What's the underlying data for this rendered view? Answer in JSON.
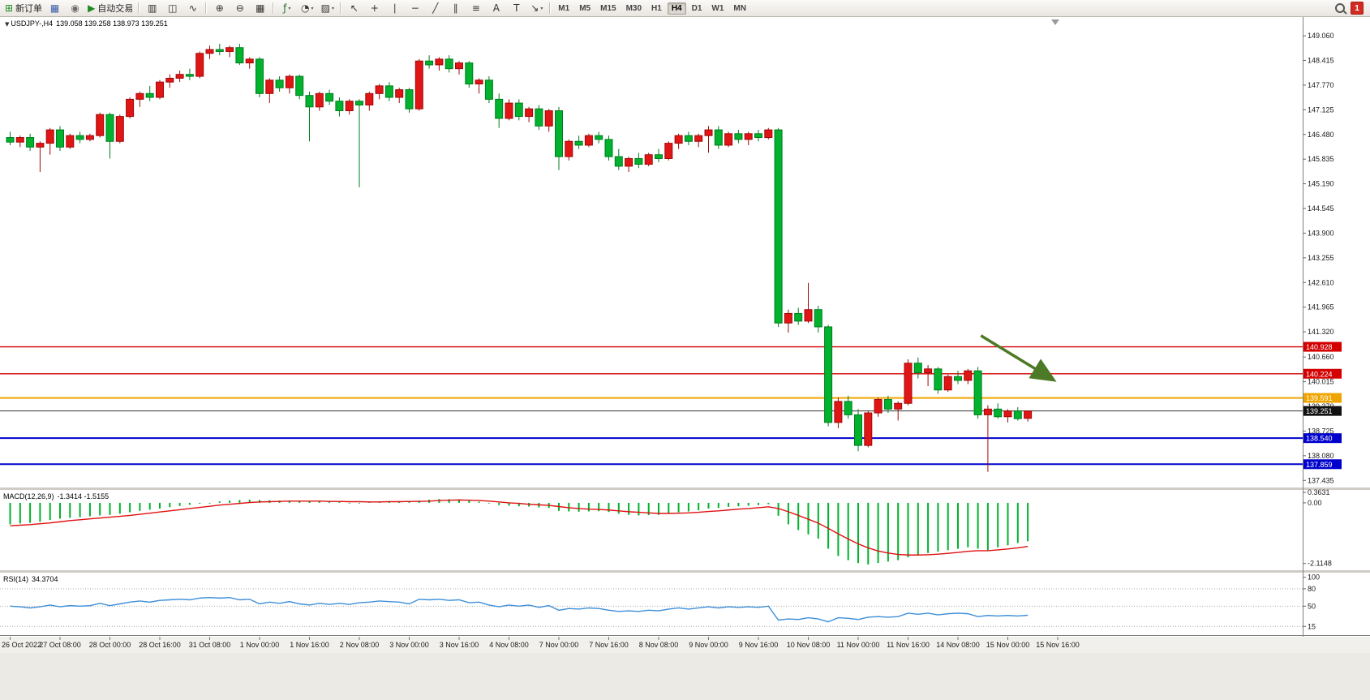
{
  "icons": {
    "dropdown": "▼",
    "tiny_dropdown": "▾"
  },
  "toolbar": {
    "groups": [
      {
        "name": "trade-group",
        "items": [
          {
            "name": "new-order-button",
            "glyph": "⊞",
            "color": "#1f8a1f",
            "label": "新订单"
          },
          {
            "name": "chart-list-button",
            "glyph": "▦",
            "color": "#3b5ea8"
          },
          {
            "name": "alerts-button",
            "glyph": "◉",
            "color": "#6b6b6b"
          },
          {
            "name": "autotrading-button",
            "glyph": "▶",
            "color": "#1f8a1f",
            "label": "自动交易"
          }
        ]
      },
      {
        "name": "chart-type-group",
        "items": [
          {
            "name": "bar-chart-button",
            "glyph": "▥",
            "color": "#333333"
          },
          {
            "name": "candlestick-chart-button",
            "glyph": "◫",
            "color": "#333333"
          },
          {
            "name": "line-chart-button",
            "glyph": "∿",
            "color": "#333333"
          }
        ]
      },
      {
        "name": "zoom-group",
        "items": [
          {
            "name": "zoom-in-button",
            "glyph": "⊕",
            "color": "#333333"
          },
          {
            "name": "zoom-out-button",
            "glyph": "⊖",
            "color": "#333333"
          },
          {
            "name": "tile-windows-button",
            "glyph": "▦",
            "color": "#333333"
          }
        ]
      },
      {
        "name": "objects-group",
        "items": [
          {
            "name": "indicators-button",
            "glyph": "ƒ",
            "color": "#1f6f1f",
            "dropdown": true
          },
          {
            "name": "periods-button",
            "glyph": "◔",
            "color": "#333333",
            "dropdown": true
          },
          {
            "name": "templates-button",
            "glyph": "▨",
            "color": "#333333",
            "dropdown": true
          }
        ]
      },
      {
        "name": "drawing-group",
        "items": [
          {
            "name": "cursor-button",
            "glyph": "↖",
            "color": "#333333"
          },
          {
            "name": "crosshair-button",
            "glyph": "+",
            "color": "#333333"
          },
          {
            "name": "vertical-line-button",
            "glyph": "∣",
            "color": "#333333"
          },
          {
            "name": "horizontal-line-button",
            "glyph": "−",
            "color": "#333333"
          },
          {
            "name": "trendline-button",
            "glyph": "╱",
            "color": "#333333"
          },
          {
            "name": "channel-button",
            "glyph": "∥",
            "color": "#333333"
          },
          {
            "name": "fibonacci-button",
            "glyph": "≡",
            "color": "#333333"
          },
          {
            "name": "text-button",
            "glyph": "A",
            "color": "#333333"
          },
          {
            "name": "label-button",
            "glyph": "T",
            "color": "#333333"
          },
          {
            "name": "arrows-button",
            "glyph": "↘",
            "color": "#333333",
            "dropdown": true
          }
        ]
      }
    ],
    "timeframes": {
      "items": [
        "M1",
        "M5",
        "M15",
        "M30",
        "H1",
        "H4",
        "D1",
        "W1",
        "MN"
      ],
      "active": "H4"
    },
    "notification_count": "1"
  },
  "chart": {
    "symbol_header": {
      "symbol": "USDJPY-,H4",
      "ohlc": "139.058 139.258 138.973 139.251"
    }
  },
  "indicators": {
    "macd": {
      "label": "MACD(12,26,9)",
      "values": "-1.3414 -1.5155"
    },
    "rsi": {
      "label": "RSI(14)",
      "values": "34.3704"
    }
  },
  "chart_data": {
    "type": "candlestick",
    "symbol": "USDJPY-",
    "timeframe": "H4",
    "up_color": "#e01515",
    "down_color": "#00b22d",
    "price_axis": {
      "min": 137.25,
      "max": 149.55,
      "tick_labels": [
        "149.060",
        "148.415",
        "147.770",
        "147.125",
        "146.480",
        "145.835",
        "145.190",
        "144.545",
        "143.900",
        "143.255",
        "142.610",
        "141.965",
        "141.320",
        "140.660",
        "140.015",
        "139.370",
        "138.725",
        "138.080",
        "137.435"
      ]
    },
    "time_labels": [
      "26 Oct 2022",
      "27 Oct 08:00",
      "28 Oct 00:00",
      "28 Oct 16:00",
      "31 Oct 08:00",
      "1 Nov 00:00",
      "1 Nov 16:00",
      "2 Nov 08:00",
      "3 Nov 00:00",
      "3 Nov 16:00",
      "4 Nov 08:00",
      "7 Nov 00:00",
      "7 Nov 16:00",
      "8 Nov 08:00",
      "9 Nov 00:00",
      "9 Nov 16:00",
      "10 Nov 08:00",
      "11 Nov 00:00",
      "11 Nov 16:00",
      "14 Nov 08:00",
      "15 Nov 00:00",
      "15 Nov 16:00"
    ],
    "candles": [
      [
        146.4,
        146.55,
        146.2,
        146.28
      ],
      [
        146.28,
        146.45,
        146.15,
        146.4
      ],
      [
        146.4,
        146.5,
        146.05,
        146.15
      ],
      [
        146.15,
        146.3,
        145.5,
        146.25
      ],
      [
        146.25,
        146.65,
        145.95,
        146.6
      ],
      [
        146.6,
        146.7,
        146.05,
        146.15
      ],
      [
        146.15,
        146.5,
        146.1,
        146.45
      ],
      [
        146.45,
        146.55,
        146.25,
        146.35
      ],
      [
        146.35,
        146.5,
        146.3,
        146.45
      ],
      [
        146.45,
        147.05,
        146.4,
        147.0
      ],
      [
        147.0,
        147.05,
        145.85,
        146.3
      ],
      [
        146.3,
        147.0,
        146.25,
        146.95
      ],
      [
        146.95,
        147.45,
        146.9,
        147.4
      ],
      [
        147.4,
        147.6,
        147.2,
        147.55
      ],
      [
        147.55,
        147.75,
        147.35,
        147.45
      ],
      [
        147.45,
        147.9,
        147.4,
        147.85
      ],
      [
        147.85,
        148.05,
        147.7,
        147.95
      ],
      [
        147.95,
        148.15,
        147.85,
        148.05
      ],
      [
        148.05,
        148.2,
        147.9,
        148.0
      ],
      [
        148.0,
        148.65,
        147.95,
        148.6
      ],
      [
        148.6,
        148.8,
        148.45,
        148.7
      ],
      [
        148.7,
        148.85,
        148.55,
        148.65
      ],
      [
        148.65,
        148.8,
        148.5,
        148.75
      ],
      [
        148.75,
        148.85,
        148.3,
        148.35
      ],
      [
        148.35,
        148.5,
        148.2,
        148.45
      ],
      [
        148.45,
        148.5,
        147.45,
        147.55
      ],
      [
        147.55,
        147.95,
        147.3,
        147.9
      ],
      [
        147.9,
        148.0,
        147.6,
        147.7
      ],
      [
        147.7,
        148.05,
        147.55,
        148.0
      ],
      [
        148.0,
        148.05,
        147.4,
        147.5
      ],
      [
        147.5,
        147.6,
        146.3,
        147.2
      ],
      [
        147.2,
        147.6,
        147.1,
        147.55
      ],
      [
        147.55,
        147.65,
        147.25,
        147.35
      ],
      [
        147.35,
        147.45,
        146.95,
        147.1
      ],
      [
        147.1,
        147.4,
        147.0,
        147.35
      ],
      [
        147.35,
        147.4,
        145.1,
        147.25
      ],
      [
        147.25,
        147.6,
        147.1,
        147.55
      ],
      [
        147.55,
        147.8,
        147.4,
        147.75
      ],
      [
        147.75,
        147.85,
        147.35,
        147.45
      ],
      [
        147.45,
        147.7,
        147.3,
        147.65
      ],
      [
        147.65,
        147.7,
        147.05,
        147.15
      ],
      [
        147.15,
        148.45,
        147.1,
        148.4
      ],
      [
        148.4,
        148.55,
        148.2,
        148.3
      ],
      [
        148.3,
        148.5,
        148.15,
        148.45
      ],
      [
        148.45,
        148.55,
        148.1,
        148.2
      ],
      [
        148.2,
        148.4,
        148.05,
        148.35
      ],
      [
        148.35,
        148.4,
        147.7,
        147.8
      ],
      [
        147.8,
        147.95,
        147.55,
        147.9
      ],
      [
        147.9,
        148.0,
        147.3,
        147.4
      ],
      [
        147.4,
        147.55,
        146.65,
        146.9
      ],
      [
        146.9,
        147.4,
        146.85,
        147.3
      ],
      [
        147.3,
        147.4,
        146.85,
        146.95
      ],
      [
        146.95,
        147.2,
        146.8,
        147.15
      ],
      [
        147.15,
        147.25,
        146.6,
        146.7
      ],
      [
        146.7,
        147.15,
        146.55,
        147.1
      ],
      [
        147.1,
        147.2,
        145.55,
        145.9
      ],
      [
        145.9,
        146.35,
        145.8,
        146.3
      ],
      [
        146.3,
        146.45,
        146.1,
        146.2
      ],
      [
        146.2,
        146.5,
        146.15,
        146.45
      ],
      [
        146.45,
        146.55,
        146.25,
        146.35
      ],
      [
        146.35,
        146.45,
        145.8,
        145.9
      ],
      [
        145.9,
        146.1,
        145.55,
        145.65
      ],
      [
        145.65,
        145.9,
        145.5,
        145.85
      ],
      [
        145.85,
        146.0,
        145.6,
        145.7
      ],
      [
        145.7,
        146.0,
        145.65,
        145.95
      ],
      [
        145.95,
        146.1,
        145.75,
        145.85
      ],
      [
        145.85,
        146.3,
        145.8,
        146.25
      ],
      [
        146.25,
        146.5,
        146.1,
        146.45
      ],
      [
        146.45,
        146.55,
        146.2,
        146.3
      ],
      [
        146.3,
        146.5,
        146.15,
        146.45
      ],
      [
        146.45,
        146.7,
        146.0,
        146.6
      ],
      [
        146.6,
        146.7,
        146.1,
        146.2
      ],
      [
        146.2,
        146.55,
        146.15,
        146.5
      ],
      [
        146.5,
        146.6,
        146.25,
        146.35
      ],
      [
        146.35,
        146.55,
        146.2,
        146.5
      ],
      [
        146.5,
        146.6,
        146.3,
        146.4
      ],
      [
        146.4,
        146.65,
        146.35,
        146.6
      ],
      [
        146.6,
        146.65,
        141.45,
        141.55
      ],
      [
        141.55,
        141.9,
        141.3,
        141.8
      ],
      [
        141.8,
        141.95,
        141.5,
        141.6
      ],
      [
        141.6,
        142.6,
        141.55,
        141.9
      ],
      [
        141.9,
        142.0,
        141.3,
        141.45
      ],
      [
        141.45,
        141.5,
        138.85,
        138.95
      ],
      [
        138.95,
        139.6,
        138.8,
        139.5
      ],
      [
        139.5,
        139.65,
        139.05,
        139.15
      ],
      [
        139.15,
        139.3,
        138.2,
        138.35
      ],
      [
        138.35,
        139.25,
        138.3,
        139.2
      ],
      [
        139.2,
        139.6,
        139.1,
        139.55
      ],
      [
        139.55,
        139.65,
        139.2,
        139.3
      ],
      [
        139.3,
        139.5,
        139.0,
        139.45
      ],
      [
        139.45,
        140.6,
        139.4,
        140.5
      ],
      [
        140.5,
        140.65,
        140.1,
        140.25
      ],
      [
        140.25,
        140.45,
        139.9,
        140.35
      ],
      [
        140.35,
        140.4,
        139.7,
        139.8
      ],
      [
        139.8,
        140.2,
        139.75,
        140.15
      ],
      [
        140.15,
        140.3,
        139.95,
        140.05
      ],
      [
        140.05,
        140.35,
        139.95,
        140.3
      ],
      [
        140.3,
        140.4,
        139.05,
        139.15
      ],
      [
        139.15,
        139.4,
        137.66,
        139.3
      ],
      [
        139.3,
        139.45,
        139.05,
        139.1
      ],
      [
        139.1,
        139.3,
        138.95,
        139.25
      ],
      [
        139.25,
        139.35,
        139.0,
        139.05
      ],
      [
        139.058,
        139.258,
        138.973,
        139.251
      ]
    ],
    "indicator_series": {
      "macd": {
        "params": "12,26,9",
        "current_macd": -1.3414,
        "current_signal": -1.5155,
        "axis_labels": [
          "0.3631",
          "0.00",
          "-2.1148"
        ],
        "histogram": [
          -0.75,
          -0.72,
          -0.7,
          -0.66,
          -0.6,
          -0.55,
          -0.52,
          -0.5,
          -0.47,
          -0.44,
          -0.42,
          -0.38,
          -0.33,
          -0.28,
          -0.24,
          -0.2,
          -0.15,
          -0.11,
          -0.07,
          -0.03,
          0.02,
          0.05,
          0.08,
          0.1,
          0.11,
          0.1,
          0.09,
          0.08,
          0.08,
          0.07,
          0.05,
          0.05,
          0.04,
          0.03,
          0.02,
          0.01,
          0.03,
          0.05,
          0.06,
          0.06,
          0.05,
          0.08,
          0.11,
          0.13,
          0.13,
          0.12,
          0.08,
          0.04,
          -0.02,
          -0.08,
          -0.1,
          -0.12,
          -0.13,
          -0.16,
          -0.18,
          -0.28,
          -0.3,
          -0.31,
          -0.3,
          -0.29,
          -0.32,
          -0.38,
          -0.42,
          -0.44,
          -0.43,
          -0.42,
          -0.38,
          -0.33,
          -0.3,
          -0.26,
          -0.2,
          -0.18,
          -0.14,
          -0.12,
          -0.1,
          -0.08,
          -0.05,
          -0.45,
          -0.75,
          -0.95,
          -1.1,
          -1.25,
          -1.6,
          -1.85,
          -2.0,
          -2.1,
          -2.15,
          -2.1,
          -2.05,
          -2.0,
          -1.9,
          -1.8,
          -1.75,
          -1.7,
          -1.65,
          -1.6,
          -1.55,
          -1.6,
          -1.65,
          -1.55,
          -1.48,
          -1.4,
          -1.34
        ],
        "signal": [
          -0.8,
          -0.78,
          -0.76,
          -0.73,
          -0.7,
          -0.66,
          -0.62,
          -0.59,
          -0.56,
          -0.53,
          -0.5,
          -0.47,
          -0.44,
          -0.4,
          -0.36,
          -0.32,
          -0.28,
          -0.24,
          -0.2,
          -0.16,
          -0.12,
          -0.08,
          -0.05,
          -0.02,
          0.01,
          0.03,
          0.04,
          0.05,
          0.06,
          0.06,
          0.06,
          0.06,
          0.05,
          0.05,
          0.04,
          0.04,
          0.03,
          0.03,
          0.04,
          0.04,
          0.05,
          0.05,
          0.06,
          0.08,
          0.09,
          0.1,
          0.09,
          0.08,
          0.06,
          0.03,
          0.0,
          -0.02,
          -0.05,
          -0.07,
          -0.09,
          -0.13,
          -0.17,
          -0.2,
          -0.22,
          -0.23,
          -0.25,
          -0.28,
          -0.31,
          -0.33,
          -0.35,
          -0.37,
          -0.37,
          -0.36,
          -0.35,
          -0.33,
          -0.3,
          -0.28,
          -0.25,
          -0.22,
          -0.2,
          -0.17,
          -0.14,
          -0.2,
          -0.31,
          -0.44,
          -0.57,
          -0.71,
          -0.89,
          -1.08,
          -1.26,
          -1.43,
          -1.57,
          -1.68,
          -1.75,
          -1.8,
          -1.82,
          -1.82,
          -1.81,
          -1.79,
          -1.76,
          -1.73,
          -1.69,
          -1.67,
          -1.67,
          -1.64,
          -1.61,
          -1.57,
          -1.52
        ]
      },
      "rsi": {
        "period": 14,
        "current": 34.3704,
        "levels": [
          80,
          50,
          15
        ],
        "axis_labels": [
          "100",
          "80",
          "50",
          "15"
        ],
        "values": [
          50,
          49,
          47,
          49,
          52,
          49,
          51,
          50,
          51,
          55,
          51,
          54,
          57,
          59,
          57,
          60,
          61,
          62,
          61,
          64,
          65,
          64,
          65,
          61,
          62,
          54,
          57,
          55,
          58,
          54,
          52,
          55,
          53,
          55,
          53,
          56,
          57,
          59,
          58,
          57,
          54,
          62,
          61,
          62,
          60,
          61,
          56,
          57,
          52,
          49,
          52,
          50,
          52,
          48,
          51,
          43,
          46,
          45,
          47,
          46,
          43,
          41,
          42,
          41,
          43,
          42,
          45,
          47,
          45,
          47,
          49,
          47,
          49,
          48,
          49,
          48,
          50,
          26,
          28,
          27,
          30,
          28,
          23,
          30,
          29,
          27,
          31,
          32,
          31,
          32,
          38,
          36,
          38,
          35,
          37,
          38,
          37,
          32,
          34,
          33,
          34,
          33,
          34.37
        ]
      }
    },
    "hlines": [
      {
        "name": "resistance-line-1",
        "price": 140.928,
        "color": "#d40000",
        "width": 1.4,
        "tag": "140.928"
      },
      {
        "name": "resistance-line-2",
        "price": 140.224,
        "color": "#d40000",
        "width": 1.4,
        "tag": "140.224"
      },
      {
        "name": "pivot-line",
        "price": 139.591,
        "color": "#efa500",
        "width": 2,
        "tag": "139.591"
      },
      {
        "name": "support-line-1",
        "price": 138.54,
        "color": "#0000cd",
        "width": 2,
        "tag": "138.540"
      },
      {
        "name": "support-line-2",
        "price": 137.859,
        "color": "#0000cd",
        "width": 2,
        "tag": "137.859"
      }
    ],
    "current_price": {
      "value": 139.251,
      "tag": "139.251",
      "line_color": "#333333",
      "tag_bg": "#111111"
    },
    "arrow_annotation": {
      "from_index": 97.3,
      "from_price": 141.22,
      "to_index": 104.4,
      "to_price": 140.09,
      "color": "#4d7a26"
    }
  }
}
